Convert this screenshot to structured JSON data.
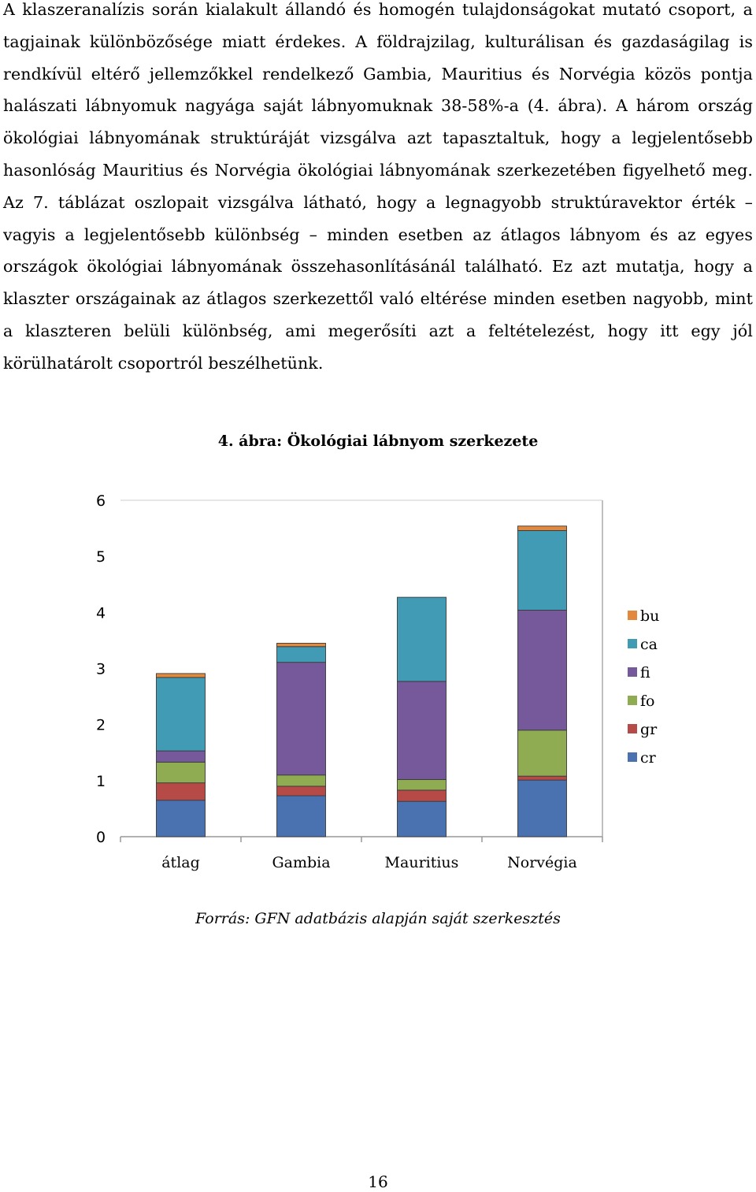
{
  "body_text": "A klaszeranalízis során kialakult állandó és homogén tulajdonságokat mutató csoport, a tagjainak különbözősége miatt érdekes. A földrajzilag, kulturálisan és gazdaságilag is rendkívül eltérő jellemzőkkel rendelkező Gambia, Mauritius és Norvégia közös pontja halászati lábnyomuk nagyága saját lábnyomuknak 38-58%-a (4. ábra). A három ország ökológiai lábnyomának struktúráját vizsgálva azt tapasztaltuk, hogy a legjelentősebb hasonlóság Mauritius és Norvégia ökológiai lábnyomának szerkezetében figyelhető meg. Az 7. táblázat oszlopait vizsgálva látható, hogy a legnagyobb struktúravektor érték – vagyis a legjelentősebb különbség – minden esetben az átlagos lábnyom és az egyes országok ökológiai lábnyomának összehasonlításánál található. Ez azt mutatja, hogy a klaszter országainak az átlagos szerkezettől való eltérése minden esetben nagyobb, mint a klaszteren belüli különbség, ami megerősíti azt a feltételezést, hogy itt egy jól körülhatárolt csoportról beszélhetünk.",
  "figure_title": "4. ábra: Ökológiai lábnyom szerkezete",
  "source_note": "Forrás: GFN adatbázis alapján saját szerkesztés",
  "page_number": "16",
  "chart_data": {
    "type": "bar",
    "stacked": true,
    "categories": [
      "átlag",
      "Gambia",
      "Mauritius",
      "Norvégia"
    ],
    "ylim": [
      0,
      6
    ],
    "yticks": [
      0,
      1,
      2,
      3,
      4,
      5,
      6
    ],
    "grid": false,
    "legend_position": "right",
    "series": [
      {
        "name": "cr",
        "color": "#4a72b0",
        "values": [
          0.65,
          0.73,
          0.63,
          1.01
        ]
      },
      {
        "name": "gr",
        "color": "#b64a47",
        "values": [
          0.31,
          0.17,
          0.2,
          0.07
        ]
      },
      {
        "name": "fo",
        "color": "#8fac52",
        "values": [
          0.37,
          0.2,
          0.19,
          0.82
        ]
      },
      {
        "name": "fi",
        "color": "#75599b",
        "values": [
          0.2,
          2.01,
          1.75,
          2.14
        ]
      },
      {
        "name": "ca",
        "color": "#419bb4",
        "values": [
          1.31,
          0.28,
          1.5,
          1.42
        ]
      },
      {
        "name": "bu",
        "color": "#e3893e",
        "values": [
          0.07,
          0.06,
          0.0,
          0.08
        ]
      }
    ]
  }
}
